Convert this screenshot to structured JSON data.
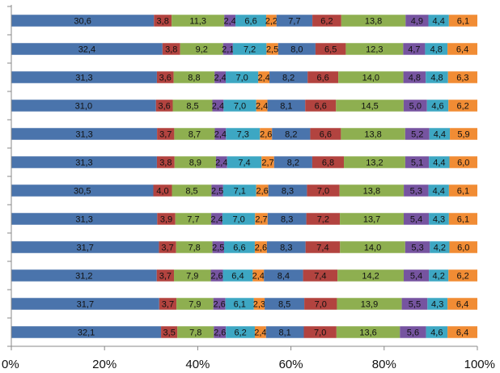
{
  "chart_data": {
    "type": "bar",
    "orientation": "horizontal",
    "stacked": "percent",
    "xlim": [
      0,
      100
    ],
    "x_ticks": [
      "0%",
      "20%",
      "40%",
      "60%",
      "80%",
      "100%"
    ],
    "grid": false,
    "legend": "none",
    "series_colors": [
      "#4a74ac",
      "#b2433f",
      "#8eaf50",
      "#7654a0",
      "#3da7c3",
      "#f18c34",
      "#4a74ac",
      "#b2433f",
      "#8eaf50",
      "#7654a0",
      "#3da7c3",
      "#f18c34"
    ],
    "rows": [
      {
        "values": [
          30.6,
          3.8,
          11.3,
          2.4,
          6.6,
          2.2,
          7.7,
          6.2,
          13.8,
          4.9,
          4.4,
          6.1
        ],
        "labels": [
          "30,6",
          "3,8",
          "11,3",
          "2,4",
          "6,6",
          "2,2",
          "7,7",
          "6,2",
          "13,8",
          "4,9",
          "4,4",
          "6,1"
        ]
      },
      {
        "values": [
          32.4,
          3.8,
          9.2,
          2.1,
          7.2,
          2.5,
          8.0,
          6.5,
          12.3,
          4.7,
          4.8,
          6.4
        ],
        "labels": [
          "32,4",
          "3,8",
          "9,2",
          "2,1",
          "7,2",
          "2,5",
          "8,0",
          "6,5",
          "12,3",
          "4,7",
          "4,8",
          "6,4"
        ]
      },
      {
        "values": [
          31.3,
          3.6,
          8.8,
          2.4,
          7.0,
          2.4,
          8.2,
          6.6,
          14.0,
          4.8,
          4.8,
          6.3
        ],
        "labels": [
          "31,3",
          "3,6",
          "8,8",
          "2,4",
          "7,0",
          "2,4",
          "8,2",
          "6,6",
          "14,0",
          "4,8",
          "4,8",
          "6,3"
        ]
      },
      {
        "values": [
          31.0,
          3.6,
          8.5,
          2.4,
          7.0,
          2.4,
          8.1,
          6.6,
          14.5,
          5.0,
          4.6,
          6.2
        ],
        "labels": [
          "31,0",
          "3,6",
          "8,5",
          "2,4",
          "7,0",
          "2,4",
          "8,1",
          "6,6",
          "14,5",
          "5,0",
          "4,6",
          "6,2"
        ]
      },
      {
        "values": [
          31.3,
          3.7,
          8.7,
          2.4,
          7.3,
          2.6,
          8.2,
          6.6,
          13.8,
          5.2,
          4.4,
          5.9
        ],
        "labels": [
          "31,3",
          "3,7",
          "8,7",
          "2,4",
          "7,3",
          "2,6",
          "8,2",
          "6,6",
          "13,8",
          "5,2",
          "4,4",
          "5,9"
        ]
      },
      {
        "values": [
          31.3,
          3.8,
          8.9,
          2.4,
          7.4,
          2.7,
          8.2,
          6.8,
          13.2,
          5.1,
          4.4,
          6.0
        ],
        "labels": [
          "31,3",
          "3,8",
          "8,9",
          "2,4",
          "7,4",
          "2,7",
          "8,2",
          "6,8",
          "13,2",
          "5,1",
          "4,4",
          "6,0"
        ]
      },
      {
        "values": [
          30.5,
          4.0,
          8.5,
          2.5,
          7.1,
          2.6,
          8.3,
          7.0,
          13.8,
          5.3,
          4.4,
          6.1
        ],
        "labels": [
          "30,5",
          "4,0",
          "8,5",
          "2,5",
          "7,1",
          "2,6",
          "8,3",
          "7,0",
          "13,8",
          "5,3",
          "4,4",
          "6,1"
        ]
      },
      {
        "values": [
          31.3,
          3.9,
          7.7,
          2.4,
          7.0,
          2.7,
          8.3,
          7.2,
          13.7,
          5.4,
          4.3,
          6.1
        ],
        "labels": [
          "31,3",
          "3,9",
          "7,7",
          "2,4",
          "7,0",
          "2,7",
          "8,3",
          "7,2",
          "13,7",
          "5,4",
          "4,3",
          "6,1"
        ]
      },
      {
        "values": [
          31.7,
          3.7,
          7.8,
          2.5,
          6.6,
          2.6,
          8.3,
          7.4,
          14.0,
          5.3,
          4.2,
          6.0
        ],
        "labels": [
          "31,7",
          "3,7",
          "7,8",
          "2,5",
          "6,6",
          "2,6",
          "8,3",
          "7,4",
          "14,0",
          "5,3",
          "4,2",
          "6,0"
        ]
      },
      {
        "values": [
          31.2,
          3.7,
          7.9,
          2.6,
          6.4,
          2.4,
          8.4,
          7.4,
          14.2,
          5.4,
          4.2,
          6.2
        ],
        "labels": [
          "31,2",
          "3,7",
          "7,9",
          "2,6",
          "6,4",
          "2,4",
          "8,4",
          "7,4",
          "14,2",
          "5,4",
          "4,2",
          "6,2"
        ]
      },
      {
        "values": [
          31.7,
          3.7,
          7.9,
          2.6,
          6.1,
          2.3,
          8.5,
          7.0,
          13.9,
          5.5,
          4.3,
          6.4
        ],
        "labels": [
          "31,7",
          "3,7",
          "7,9",
          "2,6",
          "6,1",
          "2,3",
          "8,5",
          "7,0",
          "13,9",
          "5,5",
          "4,3",
          "6,4"
        ]
      },
      {
        "values": [
          32.1,
          3.5,
          7.8,
          2.6,
          6.2,
          2.4,
          8.1,
          7.0,
          13.6,
          5.6,
          4.6,
          6.4
        ],
        "labels": [
          "32,1",
          "3,5",
          "7,8",
          "2,6",
          "6,2",
          "2,4",
          "8,1",
          "7,0",
          "13,6",
          "5,6",
          "4,6",
          "6,4"
        ]
      }
    ]
  }
}
